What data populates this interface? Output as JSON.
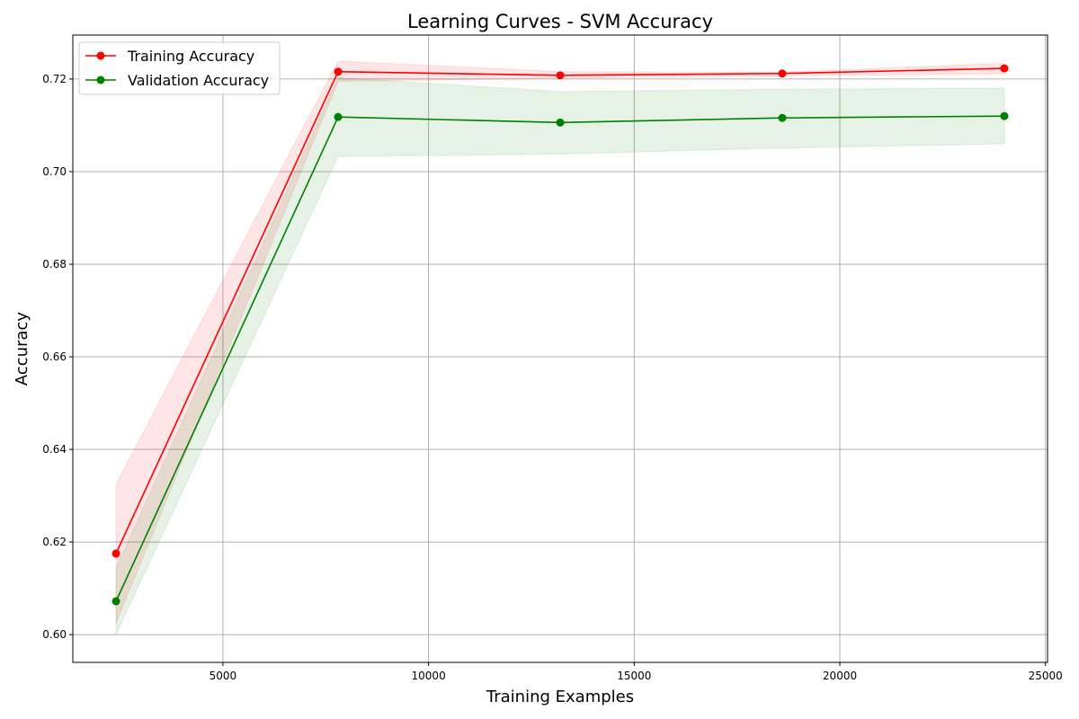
{
  "chart_data": {
    "type": "line",
    "title": "Learning Curves - SVM Accuracy",
    "xlabel": "Training Examples",
    "ylabel": "Accuracy",
    "x": [
      2400,
      7800,
      13200,
      18600,
      24000
    ],
    "xlim": [
      1350,
      25050
    ],
    "ylim": [
      0.594,
      0.7295
    ],
    "xticks": [
      5000,
      10000,
      15000,
      20000,
      25000
    ],
    "yticks": [
      0.6,
      0.62,
      0.64,
      0.66,
      0.68,
      0.7,
      0.72
    ],
    "ytick_labels": [
      "0.60",
      "0.62",
      "0.64",
      "0.66",
      "0.68",
      "0.70",
      "0.72"
    ],
    "grid": true,
    "legend_position": "top-left",
    "series": [
      {
        "name": "Training Accuracy",
        "color": "#ff0000",
        "values": [
          0.6175,
          0.7216,
          0.7208,
          0.7212,
          0.7223
        ],
        "band_lower": [
          0.6025,
          0.7195,
          0.7202,
          0.7207,
          0.7211
        ],
        "band_upper": [
          0.6325,
          0.7239,
          0.7216,
          0.7215,
          0.7234
        ]
      },
      {
        "name": "Validation Accuracy",
        "color": "#008000",
        "values": [
          0.6072,
          0.7118,
          0.7106,
          0.7116,
          0.712
        ],
        "band_lower": [
          0.6,
          0.7033,
          0.7038,
          0.7051,
          0.706
        ],
        "band_upper": [
          0.6144,
          0.7203,
          0.7173,
          0.7178,
          0.718
        ]
      }
    ]
  }
}
